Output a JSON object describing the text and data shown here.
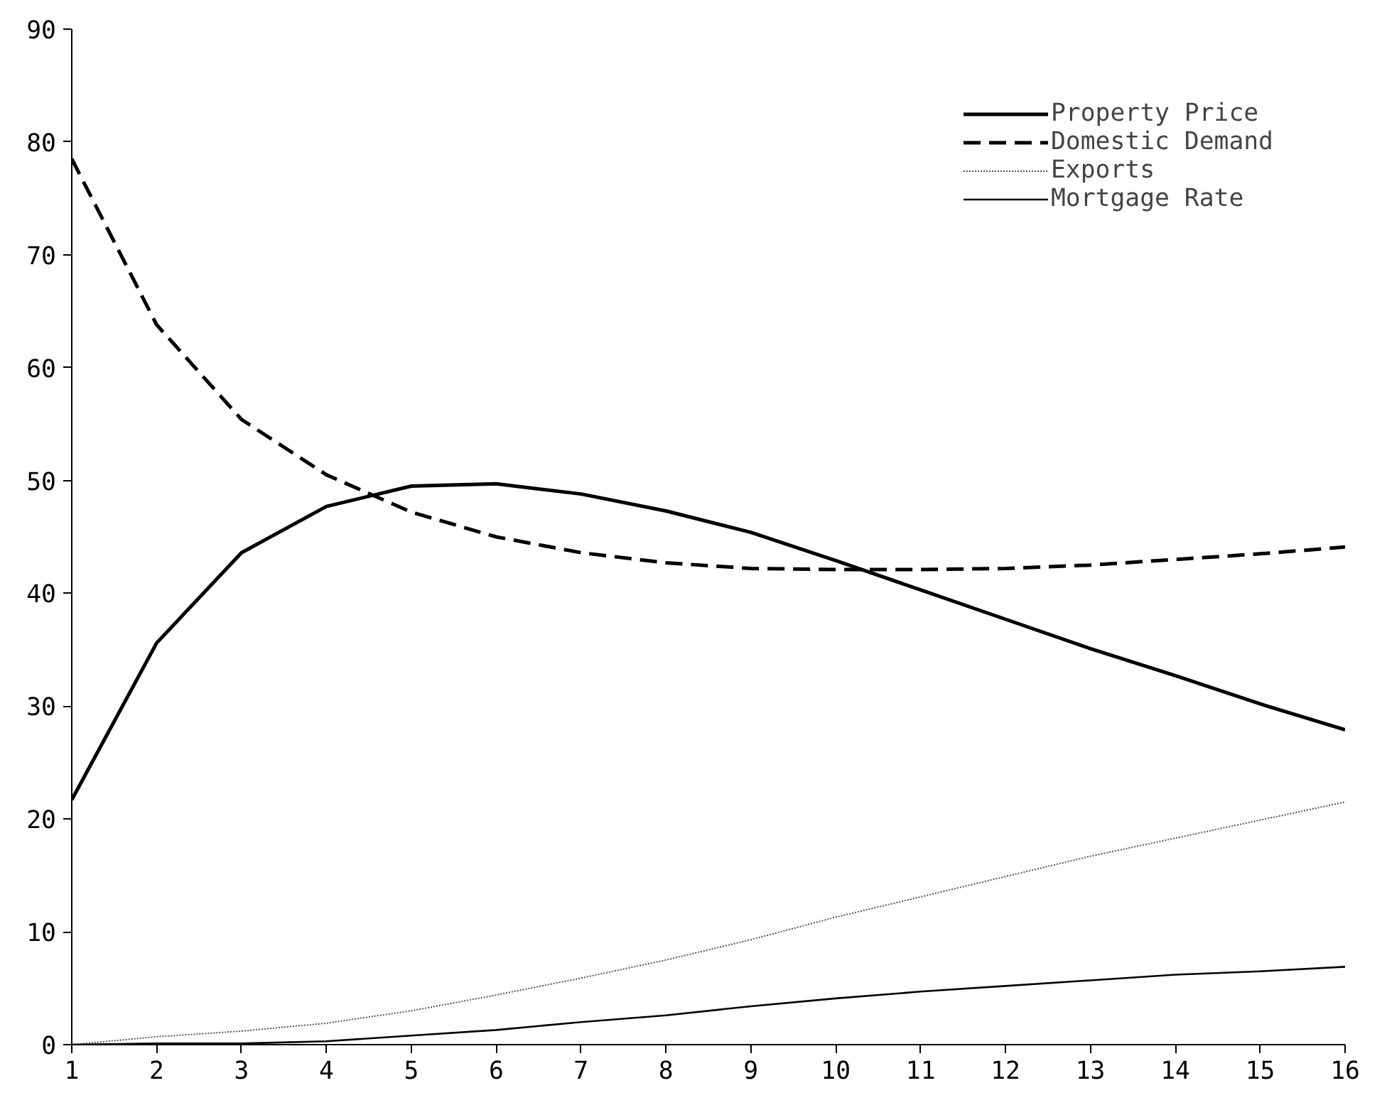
{
  "chart_data": {
    "type": "line",
    "x": [
      1,
      2,
      3,
      4,
      5,
      6,
      7,
      8,
      9,
      10,
      11,
      12,
      13,
      14,
      15,
      16
    ],
    "xlim": [
      1,
      16
    ],
    "xticks": [
      1,
      2,
      3,
      4,
      5,
      6,
      7,
      8,
      9,
      10,
      11,
      12,
      13,
      14,
      15,
      16
    ],
    "ylim": [
      0,
      90
    ],
    "yticks": [
      0,
      10,
      20,
      30,
      40,
      50,
      60,
      70,
      80,
      90
    ],
    "grid": false,
    "legend": "top right",
    "marker": "none",
    "series": [
      {
        "name": "Property Price",
        "color": "#000000",
        "line_style": "solid",
        "values": [
          21.7,
          35.6,
          43.6,
          47.7,
          49.5,
          49.7,
          48.8,
          47.3,
          45.4,
          42.9,
          40.3,
          37.7,
          35.1,
          32.7,
          30.2,
          27.9
        ]
      },
      {
        "name": "Domestic Demand",
        "color": "#000000",
        "line_style": "dashed",
        "values": [
          78.5,
          63.8,
          55.4,
          50.5,
          47.2,
          45.0,
          43.6,
          42.7,
          42.2,
          42.1,
          42.1,
          42.2,
          42.5,
          43.0,
          43.5,
          44.1
        ]
      },
      {
        "name": "Exports",
        "color": "#555555",
        "line_style": "dotted",
        "values": [
          0,
          0.7,
          1.2,
          1.9,
          3.0,
          4.4,
          5.9,
          7.5,
          9.3,
          11.3,
          13.1,
          14.9,
          16.7,
          18.3,
          19.9,
          21.5
        ]
      },
      {
        "name": "Mortgage Rate",
        "color": "#000000",
        "line_style": "solid",
        "values": [
          0,
          0.1,
          0.1,
          0.3,
          0.8,
          1.3,
          2.0,
          2.6,
          3.4,
          4.1,
          4.7,
          5.2,
          5.7,
          6.2,
          6.5,
          6.9
        ]
      }
    ]
  }
}
